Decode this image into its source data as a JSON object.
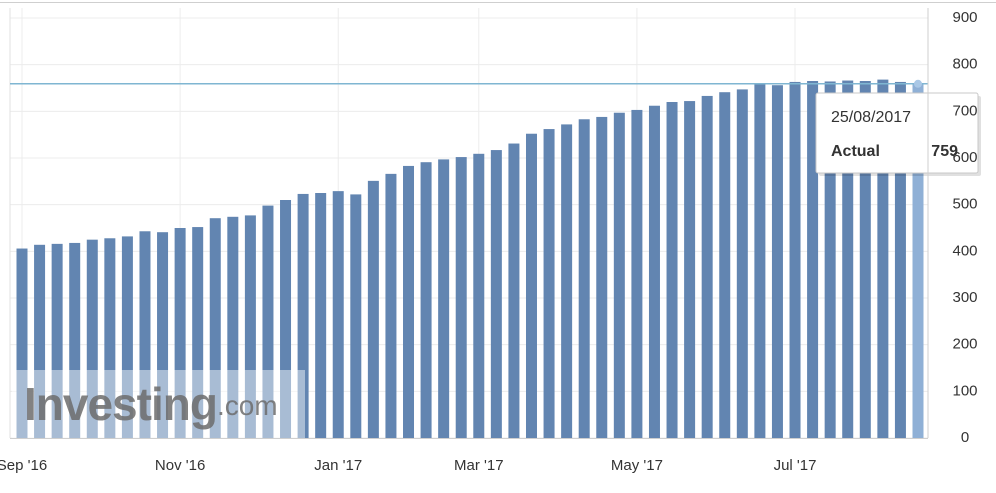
{
  "chart_data": {
    "type": "bar",
    "categories": [
      "Sep '16",
      null,
      null,
      null,
      null,
      null,
      null,
      null,
      null,
      "Nov '16",
      null,
      null,
      null,
      null,
      null,
      null,
      null,
      null,
      "Jan '17",
      null,
      null,
      null,
      null,
      null,
      null,
      null,
      "Mar '17",
      null,
      null,
      null,
      null,
      null,
      null,
      null,
      null,
      "May '17",
      null,
      null,
      null,
      null,
      null,
      null,
      null,
      null,
      "Jul '17",
      null,
      null,
      null,
      null,
      null,
      null,
      null
    ],
    "values": [
      406,
      414,
      416,
      418,
      425,
      428,
      432,
      443,
      441,
      450,
      452,
      471,
      474,
      477,
      498,
      510,
      523,
      525,
      529,
      522,
      551,
      566,
      583,
      591,
      597,
      602,
      609,
      617,
      631,
      652,
      662,
      672,
      683,
      688,
      697,
      703,
      712,
      720,
      722,
      733,
      741,
      747,
      758,
      756,
      763,
      765,
      764,
      766,
      765,
      768,
      763,
      759
    ],
    "color": "#6285b1",
    "highlight_color": "#8fb0d6",
    "ylim": [
      0,
      900
    ],
    "yticks": [
      0,
      100,
      200,
      300,
      400,
      500,
      600,
      700,
      800,
      900
    ],
    "grid": true,
    "tooltip": {
      "date": "25/08/2017",
      "label": "Actual",
      "value": 759
    },
    "watermark": {
      "brand": "Investing",
      "suffix": ".com"
    }
  }
}
